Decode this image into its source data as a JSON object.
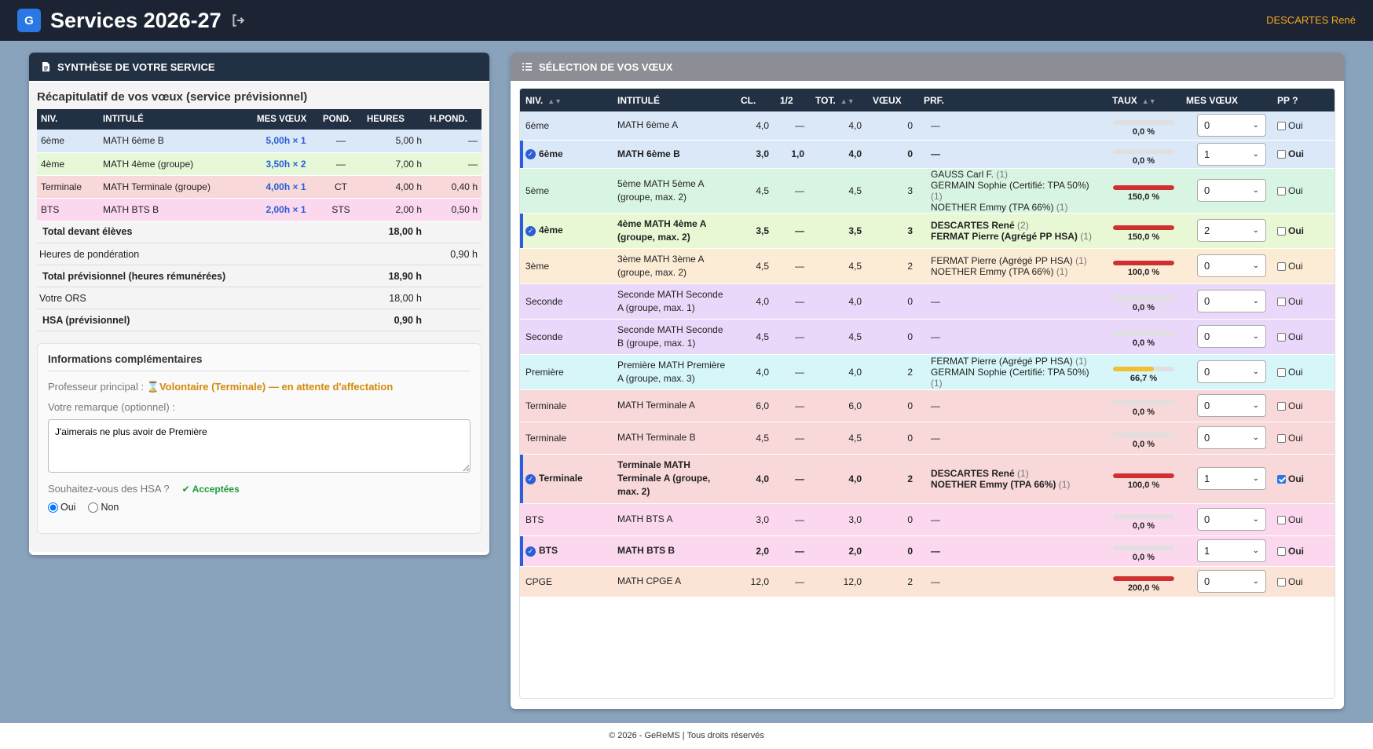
{
  "header": {
    "logo": "G",
    "title": "Services 2026-27",
    "user": "DESCARTES René"
  },
  "left": {
    "panel_title": "SYNTHÈSE DE VOTRE SERVICE",
    "subtitle": "Récapitulatif de vos vœux (service prévisionnel)",
    "columns": [
      "NIV.",
      "INTITULÉ",
      "MES VŒUX",
      "POND.",
      "HEURES",
      "H.POND."
    ],
    "rows": [
      {
        "niv": "6ème",
        "intitule": "MATH 6ème B",
        "voeux": "5,00h × 1",
        "pond": "—",
        "heures": "5,00 h",
        "hpond": "—",
        "color": "#dbe8f8"
      },
      {
        "niv": "4ème",
        "intitule": "MATH 4ème (groupe)",
        "voeux": "3,50h × 2",
        "pond": "—",
        "heures": "7,00 h",
        "hpond": "—",
        "color": "#e6f8d8"
      },
      {
        "niv": "Terminale",
        "intitule": "MATH Terminale (groupe)",
        "voeux": "4,00h × 1",
        "pond": "CT",
        "heures": "4,00 h",
        "hpond": "0,40 h",
        "color": "#f8d8d8"
      },
      {
        "niv": "BTS",
        "intitule": "MATH BTS B",
        "voeux": "2,00h × 1",
        "pond": "STS",
        "heures": "2,00 h",
        "hpond": "0,50 h",
        "color": "#fbd8ee"
      }
    ],
    "summary": [
      {
        "label": "Total devant élèves",
        "heures": "18,00 h",
        "hpond": "",
        "bold": true
      },
      {
        "label": "Heures de pondération",
        "heures": "",
        "hpond": "0,90 h",
        "bold": false
      },
      {
        "label": "Total prévisionnel (heures rémunérées)",
        "heures": "18,90 h",
        "hpond": "",
        "bold": true
      },
      {
        "label": "Votre ORS",
        "heures": "18,00 h",
        "hpond": "",
        "bold": false
      },
      {
        "label": "HSA (prévisionnel)",
        "heures": "0,90 h",
        "hpond": "",
        "bold": true
      }
    ],
    "info": {
      "title": "Informations complémentaires",
      "pp_label": "Professeur principal :",
      "pp_value": "Volontaire (Terminale) — en attente d'affectation",
      "remark_label": "Votre remarque (optionnel) :",
      "remark_value": "J'aimerais ne plus avoir de Première",
      "hsa_label": "Souhaitez-vous des HSA ?",
      "hsa_status": "Acceptées",
      "opt_yes": "Oui",
      "opt_no": "Non",
      "selected": "Oui"
    }
  },
  "right": {
    "panel_title": "SÉLECTION DE VOS VŒUX",
    "columns": [
      "NIV.",
      "INTITULÉ",
      "CL.",
      "1/2",
      "TOT.",
      "VŒUX",
      "PRF.",
      "TAUX",
      "MES VŒUX",
      "PP ?"
    ],
    "pp_label": "Oui",
    "rows": [
      {
        "niv": "6ème",
        "intitule": "MATH 6ème A",
        "cl": "4,0",
        "demi": "—",
        "tot": "4,0",
        "voeux": "0",
        "prf": [],
        "taux": "0,0 %",
        "pct": 0,
        "barColor": "#ccc",
        "mes": "0",
        "pp": false,
        "sel": false,
        "color": "#dbe8f8",
        "h": 36
      },
      {
        "niv": "6ème",
        "intitule": "MATH 6ème B",
        "cl": "3,0",
        "demi": "1,0",
        "tot": "4,0",
        "voeux": "0",
        "prf": [],
        "taux": "0,0 %",
        "pct": 0,
        "barColor": "#ccc",
        "mes": "1",
        "pp": false,
        "sel": true,
        "color": "#dbe8f8",
        "h": 36
      },
      {
        "niv": "5ème",
        "intitule": "5ème MATH 5ème A (groupe, max. 2)",
        "cl": "4,5",
        "demi": "—",
        "tot": "4,5",
        "voeux": "3",
        "prf": [
          {
            "n": "GAUSS Carl F.",
            "c": "(1)"
          },
          {
            "n": "GERMAIN Sophie (Certifié: TPA 50%)",
            "c": "(1)"
          },
          {
            "n": "NOETHER Emmy (TPA 66%)",
            "c": "(1)"
          }
        ],
        "taux": "150,0 %",
        "pct": 100,
        "barColor": "#d03030",
        "mes": "0",
        "pp": false,
        "sel": false,
        "color": "#d8f5e3",
        "h": 54
      },
      {
        "niv": "4ème",
        "intitule": "4ème MATH 4ème A (groupe, max. 2)",
        "cl": "3,5",
        "demi": "—",
        "tot": "3,5",
        "voeux": "3",
        "prf": [
          {
            "n": "DESCARTES René",
            "c": "(2)"
          },
          {
            "n": "FERMAT Pierre (Agrégé PP HSA)",
            "c": "(1)"
          }
        ],
        "taux": "150,0 %",
        "pct": 100,
        "barColor": "#d03030",
        "mes": "2",
        "pp": false,
        "sel": true,
        "color": "#e8f8d5",
        "h": 45
      },
      {
        "niv": "3ème",
        "intitule": "3ème MATH 3ème A (groupe, max. 2)",
        "cl": "4,5",
        "demi": "—",
        "tot": "4,5",
        "voeux": "2",
        "prf": [
          {
            "n": "FERMAT Pierre (Agrégé PP HSA)",
            "c": "(1)"
          },
          {
            "n": "NOETHER Emmy (TPA 66%)",
            "c": "(1)"
          }
        ],
        "taux": "100,0 %",
        "pct": 100,
        "barColor": "#d03030",
        "mes": "0",
        "pp": false,
        "sel": false,
        "color": "#fcecd6",
        "h": 45
      },
      {
        "niv": "Seconde",
        "intitule": "Seconde MATH Seconde A (groupe, max. 1)",
        "cl": "4,0",
        "demi": "—",
        "tot": "4,0",
        "voeux": "0",
        "prf": [],
        "taux": "0,0 %",
        "pct": 0,
        "barColor": "#ccc",
        "mes": "0",
        "pp": false,
        "sel": false,
        "color": "#ead8fa",
        "h": 45
      },
      {
        "niv": "Seconde",
        "intitule": "Seconde MATH Seconde B (groupe, max. 1)",
        "cl": "4,5",
        "demi": "—",
        "tot": "4,5",
        "voeux": "0",
        "prf": [],
        "taux": "0,0 %",
        "pct": 0,
        "barColor": "#ccc",
        "mes": "0",
        "pp": false,
        "sel": false,
        "color": "#ead8fa",
        "h": 45
      },
      {
        "niv": "Première",
        "intitule": "Première MATH Première A (groupe, max. 3)",
        "cl": "4,0",
        "demi": "—",
        "tot": "4,0",
        "voeux": "2",
        "prf": [
          {
            "n": "FERMAT Pierre (Agrégé PP HSA)",
            "c": "(1)"
          },
          {
            "n": "GERMAIN Sophie (Certifié: TPA 50%)",
            "c": "(1)"
          }
        ],
        "taux": "66,7 %",
        "pct": 66.7,
        "barColor": "#f2c02e",
        "mes": "0",
        "pp": false,
        "sel": false,
        "color": "#d6f6fa",
        "h": 45
      },
      {
        "niv": "Terminale",
        "intitule": "MATH Terminale A",
        "cl": "6,0",
        "demi": "—",
        "tot": "6,0",
        "voeux": "0",
        "prf": [],
        "taux": "0,0 %",
        "pct": 0,
        "barColor": "#ccc",
        "mes": "0",
        "pp": false,
        "sel": false,
        "color": "#f8d8d8",
        "h": 41
      },
      {
        "niv": "Terminale",
        "intitule": "MATH Terminale B",
        "cl": "4,5",
        "demi": "—",
        "tot": "4,5",
        "voeux": "0",
        "prf": [],
        "taux": "0,0 %",
        "pct": 0,
        "barColor": "#ccc",
        "mes": "0",
        "pp": false,
        "sel": false,
        "color": "#f8d8d8",
        "h": 41
      },
      {
        "niv": "Terminale",
        "intitule": "Terminale MATH Terminale A (groupe, max. 2)",
        "cl": "4,0",
        "demi": "—",
        "tot": "4,0",
        "voeux": "2",
        "prf": [
          {
            "n": "DESCARTES René",
            "c": "(1)"
          },
          {
            "n": "NOETHER Emmy (TPA 66%)",
            "c": "(1)"
          }
        ],
        "taux": "100,0 %",
        "pct": 100,
        "barColor": "#d03030",
        "mes": "1",
        "pp": true,
        "sel": true,
        "color": "#f8d8d8",
        "h": 63
      },
      {
        "niv": "BTS",
        "intitule": "MATH BTS A",
        "cl": "3,0",
        "demi": "—",
        "tot": "3,0",
        "voeux": "0",
        "prf": [],
        "taux": "0,0 %",
        "pct": 0,
        "barColor": "#ccc",
        "mes": "0",
        "pp": false,
        "sel": false,
        "color": "#fbd8ee",
        "h": 41
      },
      {
        "niv": "BTS",
        "intitule": "MATH BTS B",
        "cl": "2,0",
        "demi": "—",
        "tot": "2,0",
        "voeux": "0",
        "prf": [],
        "taux": "0,0 %",
        "pct": 0,
        "barColor": "#ccc",
        "mes": "1",
        "pp": false,
        "sel": true,
        "color": "#fbd8ee",
        "h": 39
      },
      {
        "niv": "CPGE",
        "intitule": "MATH CPGE A",
        "cl": "12,0",
        "demi": "—",
        "tot": "12,0",
        "voeux": "2",
        "prf": [],
        "taux": "200,0 %",
        "pct": 100,
        "barColor": "#d03030",
        "mes": "0",
        "pp": false,
        "sel": false,
        "color": "#fbe4d6",
        "h": 39
      }
    ]
  },
  "footer": "© 2026 - GeReMS | Tous droits réservés"
}
